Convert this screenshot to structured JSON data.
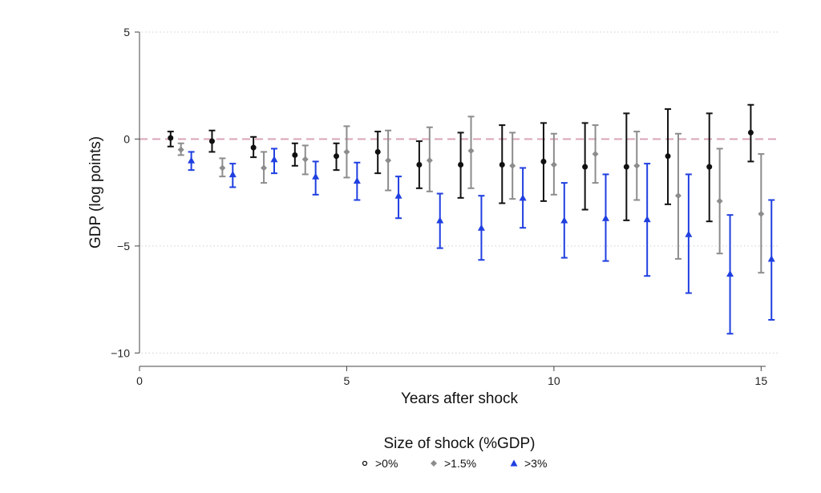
{
  "chart_data": {
    "type": "scatter",
    "xlabel": "Years after shock",
    "ylabel": "GDP (log points)",
    "xlim": [
      0,
      15.4
    ],
    "ylim": [
      -10.4,
      5
    ],
    "x_ticks": [
      0,
      5,
      10,
      15
    ],
    "y_ticks": [
      5,
      0,
      -5,
      -10
    ],
    "y_tick_labels": [
      "5",
      "0",
      "−5",
      "−10"
    ],
    "reference_line": {
      "y": 0,
      "style": "dashed",
      "color": "#d9a3b8"
    },
    "grid": "dotted horizontal at y ticks",
    "legend": {
      "title": "Size of shock (%GDP)",
      "placement": "bottom-center"
    },
    "series": [
      {
        "name": ">0%",
        "marker": "circle",
        "color": "#111111",
        "x": [
          0.75,
          1.75,
          2.75,
          3.75,
          4.75,
          5.75,
          6.75,
          7.75,
          8.75,
          9.75,
          10.75,
          11.75,
          12.75,
          13.75,
          14.75
        ],
        "y": [
          0.05,
          -0.1,
          -0.4,
          -0.75,
          -0.8,
          -0.6,
          -1.2,
          -1.2,
          -1.2,
          -1.05,
          -1.3,
          -1.3,
          -0.8,
          -1.3,
          0.3
        ],
        "lower": [
          -0.35,
          -0.6,
          -0.85,
          -1.25,
          -1.45,
          -1.6,
          -2.3,
          -2.75,
          -3.0,
          -2.9,
          -3.3,
          -3.8,
          -3.05,
          -3.85,
          -1.05
        ],
        "upper": [
          0.35,
          0.4,
          0.1,
          -0.2,
          -0.2,
          0.35,
          -0.1,
          0.3,
          0.65,
          0.75,
          0.75,
          1.2,
          1.4,
          1.2,
          1.6
        ]
      },
      {
        "name": ">1.5%",
        "marker": "diamond",
        "color": "#8c8c8c",
        "x": [
          1.0,
          2.0,
          3.0,
          4.0,
          5.0,
          6.0,
          7.0,
          8.0,
          9.0,
          10.0,
          11.0,
          12.0,
          13.0,
          14.0,
          15.0
        ],
        "y": [
          -0.5,
          -1.35,
          -1.35,
          -0.95,
          -0.6,
          -1.0,
          -1.0,
          -0.55,
          -1.25,
          -1.2,
          -0.7,
          -1.25,
          -2.65,
          -2.9,
          -3.5
        ],
        "lower": [
          -0.75,
          -1.75,
          -2.05,
          -1.65,
          -1.8,
          -2.4,
          -2.45,
          -2.3,
          -2.8,
          -2.6,
          -2.05,
          -2.85,
          -5.6,
          -5.35,
          -6.25
        ],
        "upper": [
          -0.2,
          -0.9,
          -0.6,
          -0.3,
          0.6,
          0.4,
          0.55,
          1.05,
          0.3,
          0.25,
          0.65,
          0.35,
          0.25,
          -0.45,
          -0.7
        ]
      },
      {
        "name": ">3%",
        "marker": "triangle",
        "color": "#1f3fe0",
        "x": [
          1.25,
          2.25,
          3.25,
          4.25,
          5.25,
          6.25,
          7.25,
          8.25,
          9.25,
          10.25,
          11.25,
          12.25,
          13.25,
          14.25,
          15.25
        ],
        "y": [
          -1.0,
          -1.65,
          -0.95,
          -1.75,
          -1.95,
          -2.65,
          -3.8,
          -4.15,
          -2.75,
          -3.8,
          -3.7,
          -3.75,
          -4.45,
          -6.3,
          -5.6
        ],
        "lower": [
          -1.45,
          -2.25,
          -1.6,
          -2.6,
          -2.85,
          -3.7,
          -5.1,
          -5.65,
          -4.15,
          -5.55,
          -5.7,
          -6.4,
          -7.2,
          -9.1,
          -8.45
        ],
        "upper": [
          -0.6,
          -1.15,
          -0.45,
          -1.05,
          -1.1,
          -1.75,
          -2.55,
          -2.65,
          -1.35,
          -2.05,
          -1.65,
          -1.15,
          -1.65,
          -3.55,
          -2.85
        ]
      }
    ]
  }
}
